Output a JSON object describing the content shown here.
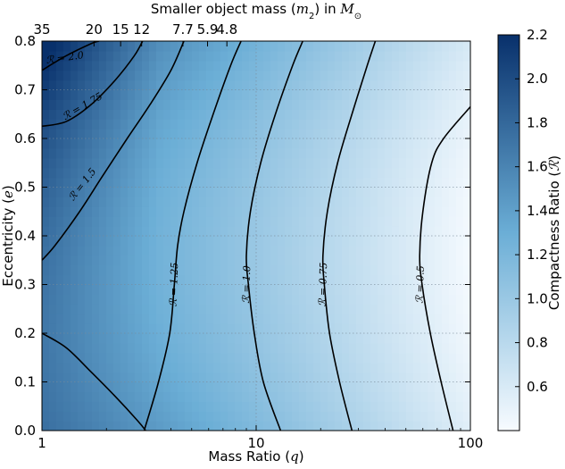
{
  "chart_data": {
    "type": "heatmap",
    "top_axis": {
      "label_prefix": "Smaller object mass (",
      "label_var": "m",
      "label_sub": "2",
      "label_mid": ") in ",
      "label_unit_var": "M",
      "label_unit_sub": "⊙",
      "tick_labels": [
        "35",
        "20",
        "15",
        "12",
        "7.7",
        "5.9",
        "4.8"
      ],
      "tick_q": [
        1,
        1.75,
        2.33,
        2.92,
        4.55,
        5.93,
        7.3
      ]
    },
    "xlabel_text": "Mass Ratio (",
    "xlabel_var": "q",
    "xlabel_close": ")",
    "ylabel_text": "Eccentricity (",
    "ylabel_var": "e",
    "ylabel_close": ")",
    "xscale": "log",
    "xlim": [
      1,
      100
    ],
    "ylim": [
      0.0,
      0.8
    ],
    "x_ticks": [
      1,
      10,
      100
    ],
    "x_tick_labels": [
      "1",
      "10",
      "100"
    ],
    "y_ticks": [
      0.0,
      0.1,
      0.2,
      0.3,
      0.4,
      0.5,
      0.6,
      0.7,
      0.8
    ],
    "y_tick_labels": [
      "0.0",
      "0.1",
      "0.2",
      "0.3",
      "0.4",
      "0.5",
      "0.6",
      "0.7",
      "0.8"
    ],
    "grid": true,
    "colorbar": {
      "label_text": "Compactness Ratio (",
      "label_var": "ℛ",
      "label_close": ")",
      "range": [
        0.4,
        2.2
      ],
      "ticks": [
        0.6,
        0.8,
        1.0,
        1.2,
        1.4,
        1.6,
        1.8,
        2.0,
        2.2
      ],
      "tick_labels": [
        "0.6",
        "0.8",
        "1.0",
        "1.2",
        "1.4",
        "1.6",
        "1.8",
        "2.0",
        "2.2"
      ],
      "color_low": "#f7fbff",
      "color_mid": "#6baed6",
      "color_high": "#08306b"
    },
    "contours": [
      {
        "label": "ℛ = 2.0",
        "value": 2.0,
        "points": [
          [
            1.0,
            0.74
          ],
          [
            1.3,
            0.77
          ],
          [
            1.7,
            0.795
          ],
          [
            1.85,
            0.8
          ]
        ]
      },
      {
        "label": "ℛ = 1.75",
        "value": 1.75,
        "points": [
          [
            1.0,
            0.625
          ],
          [
            1.3,
            0.635
          ],
          [
            1.7,
            0.67
          ],
          [
            2.2,
            0.72
          ],
          [
            2.7,
            0.77
          ],
          [
            2.95,
            0.8
          ]
        ]
      },
      {
        "label": "ℛ = 1.5",
        "value": 1.5,
        "points": [
          [
            1.0,
            0.35
          ],
          [
            1.15,
            0.38
          ],
          [
            1.5,
            0.45
          ],
          [
            1.9,
            0.52
          ],
          [
            2.5,
            0.6
          ],
          [
            3.2,
            0.67
          ],
          [
            4.0,
            0.74
          ],
          [
            4.6,
            0.8
          ]
        ]
      },
      {
        "label": "ℛ = 1.25",
        "value": 1.25,
        "points": [
          [
            3.0,
            0.0
          ],
          [
            3.5,
            0.1
          ],
          [
            3.95,
            0.2
          ],
          [
            4.15,
            0.3
          ],
          [
            4.3,
            0.38
          ],
          [
            4.6,
            0.45
          ],
          [
            5.3,
            0.55
          ],
          [
            6.3,
            0.65
          ],
          [
            7.6,
            0.75
          ],
          [
            8.5,
            0.8
          ]
        ]
      },
      {
        "label": "ℛ = 1.0",
        "value": 1.0,
        "points": [
          [
            13.0,
            0.0
          ],
          [
            10.8,
            0.1
          ],
          [
            9.8,
            0.2
          ],
          [
            9.2,
            0.3
          ],
          [
            9.0,
            0.36
          ],
          [
            9.4,
            0.45
          ],
          [
            10.5,
            0.55
          ],
          [
            12.3,
            0.65
          ],
          [
            14.8,
            0.75
          ],
          [
            16.5,
            0.8
          ]
        ]
      },
      {
        "label": "ℛ = 0.75",
        "value": 0.75,
        "points": [
          [
            28.0,
            0.0
          ],
          [
            24.5,
            0.1
          ],
          [
            22.0,
            0.2
          ],
          [
            20.8,
            0.3
          ],
          [
            20.5,
            0.36
          ],
          [
            21.5,
            0.45
          ],
          [
            24.0,
            0.55
          ],
          [
            28.0,
            0.65
          ],
          [
            33.0,
            0.75
          ],
          [
            36.0,
            0.8
          ]
        ]
      },
      {
        "label": "ℛ = 0.5",
        "value": 0.5,
        "points": [
          [
            83.0,
            0.0
          ],
          [
            73.0,
            0.1
          ],
          [
            65.0,
            0.2
          ],
          [
            59.5,
            0.3
          ],
          [
            58.0,
            0.36
          ],
          [
            60.0,
            0.45
          ],
          [
            66.0,
            0.55
          ],
          [
            75.0,
            0.6
          ],
          [
            100.0,
            0.665
          ]
        ]
      },
      {
        "label": "",
        "value": 1.75,
        "points": [
          [
            1.0,
            0.2
          ],
          [
            1.3,
            0.17
          ],
          [
            1.7,
            0.12
          ],
          [
            2.2,
            0.07
          ],
          [
            2.8,
            0.02
          ],
          [
            3.05,
            0.0
          ]
        ]
      }
    ],
    "contour_labels": [
      {
        "text": "ℛ = 2.0",
        "q": 1.28,
        "e": 0.765,
        "angle": -8
      },
      {
        "text": "ℛ = 1.75",
        "q": 1.55,
        "e": 0.665,
        "angle": -30
      },
      {
        "text": "ℛ = 1.5",
        "q": 1.55,
        "e": 0.505,
        "angle": -52
      },
      {
        "text": "ℛ = 1.25",
        "q": 4.15,
        "e": 0.3,
        "angle": -88
      },
      {
        "text": "ℛ = 1.0",
        "q": 9.05,
        "e": 0.3,
        "angle": -88
      },
      {
        "text": "ℛ = 0.75",
        "q": 20.6,
        "e": 0.3,
        "angle": -88
      },
      {
        "text": "ℛ = 0.5",
        "q": 58.5,
        "e": 0.3,
        "angle": -88
      }
    ]
  }
}
